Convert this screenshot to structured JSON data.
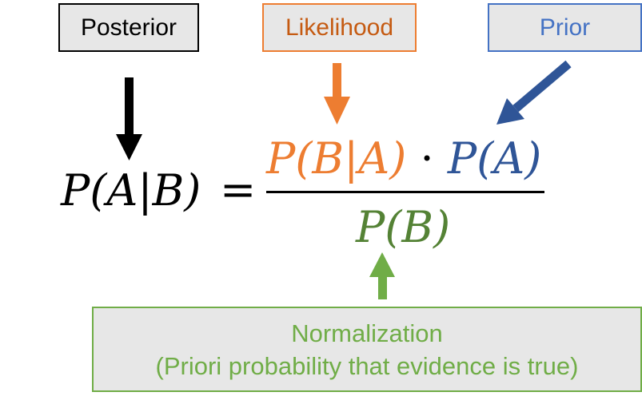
{
  "labels": {
    "posterior": "Posterior",
    "likelihood": "Likelihood",
    "prior": "Prior",
    "normalization_line1": "Normalization",
    "normalization_line2": "(Priori probability that evidence is true)"
  },
  "formula": {
    "lhs": "P(A|B)",
    "equals": "=",
    "numerator_likelihood": "P(B|A)",
    "numerator_dot": "·",
    "numerator_prior": "P(A)",
    "denominator": "P(B)"
  },
  "colors": {
    "posterior": "#000000",
    "likelihood": "#ed7d31",
    "prior": "#2f5597",
    "normalization": "#70ad47"
  }
}
